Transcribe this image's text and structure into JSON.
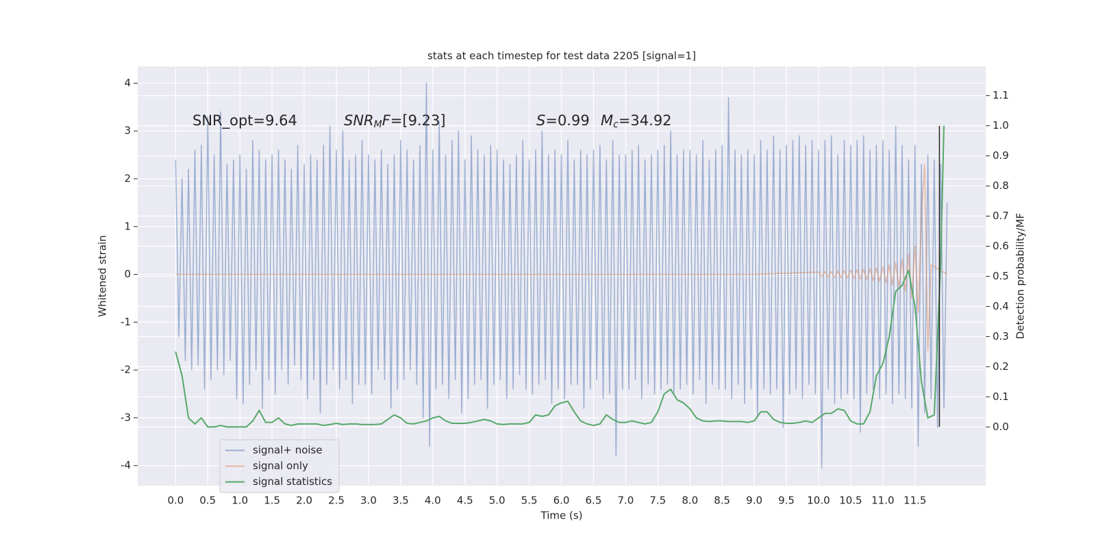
{
  "chart_data": {
    "type": "line",
    "title": "stats at each timestep for test data 2205 [signal=1]",
    "xlabel": "Time (s)",
    "ylabel": "Whitened strain",
    "y2label": "Detection probability/MF",
    "xlim": [
      -0.59,
      12.6
    ],
    "ylim": [
      -4.42,
      4.35
    ],
    "y2lim": [
      -0.195,
      1.197
    ],
    "xticks": [
      {
        "value": 0,
        "label": "0.0"
      },
      0.5,
      {
        "value": 1,
        "label": "1.0"
      },
      1.5,
      {
        "value": 2,
        "label": "2.0"
      },
      2.5,
      {
        "value": 3,
        "label": "3.0"
      },
      3.5,
      {
        "value": 4,
        "label": "4.0"
      },
      4.5,
      {
        "value": 5,
        "label": "5.0"
      },
      5.5,
      {
        "value": 6,
        "label": "6.0"
      },
      6.5,
      {
        "value": 7,
        "label": "7.0"
      },
      7.5,
      {
        "value": 8,
        "label": "8.0"
      },
      8.5,
      {
        "value": 9,
        "label": "9.0"
      },
      9.5,
      {
        "value": 10,
        "label": "10.0"
      },
      10.5,
      {
        "value": 11,
        "label": "11.0"
      },
      11.5
    ],
    "yticks": [
      -4,
      -3,
      -2,
      -1,
      0,
      1,
      2,
      3,
      4
    ],
    "y2ticks": [
      {
        "value": 0,
        "label": "0.0"
      },
      0.1,
      0.2,
      0.3,
      0.4,
      0.5,
      0.6,
      0.7,
      0.8,
      0.9,
      {
        "value": 1,
        "label": "1.0"
      },
      1.1
    ],
    "grid": true,
    "background": "#eaeaf2",
    "legend": "lower left",
    "annotations": [
      {
        "parts": [
          {
            "text": "SNR_opt=9.64"
          }
        ]
      },
      {
        "parts": [
          {
            "text": "SNR",
            "italic": true
          },
          {
            "text": "M",
            "italic": true,
            "sub": true
          },
          {
            "text": "F",
            "italic": true
          },
          {
            "text": "=[9.23]"
          }
        ]
      },
      {
        "parts": [
          {
            "text": "S",
            "italic": true
          },
          {
            "text": "=0.99"
          }
        ]
      },
      {
        "parts": [
          {
            "text": "M",
            "italic": true
          },
          {
            "text": "c",
            "italic": true,
            "sub": true
          },
          {
            "text": "=34.92"
          }
        ]
      }
    ],
    "vline": {
      "x": 11.88,
      "y2range": [
        0,
        1
      ],
      "color": "#222222"
    },
    "series": [
      {
        "name": "signal+ noise",
        "color": "#4c72b0",
        "alpha": 0.5,
        "x": [
          0,
          0.05,
          0.1,
          0.15,
          0.2,
          0.25,
          0.3,
          0.35,
          0.4,
          0.45,
          0.5,
          0.55,
          0.6,
          0.65,
          0.7,
          0.75,
          0.8,
          0.85,
          0.9,
          0.95,
          1,
          1.05,
          1.1,
          1.15,
          1.2,
          1.25,
          1.3,
          1.35,
          1.4,
          1.45,
          1.5,
          1.55,
          1.6,
          1.65,
          1.7,
          1.75,
          1.8,
          1.85,
          1.9,
          1.95,
          2,
          2.05,
          2.1,
          2.15,
          2.2,
          2.25,
          2.3,
          2.35,
          2.4,
          2.45,
          2.5,
          2.55,
          2.6,
          2.65,
          2.7,
          2.75,
          2.8,
          2.85,
          2.9,
          2.95,
          3,
          3.05,
          3.1,
          3.15,
          3.2,
          3.25,
          3.3,
          3.35,
          3.4,
          3.45,
          3.5,
          3.55,
          3.6,
          3.65,
          3.7,
          3.75,
          3.8,
          3.85,
          3.9,
          3.95,
          4,
          4.05,
          4.1,
          4.15,
          4.2,
          4.25,
          4.3,
          4.35,
          4.4,
          4.45,
          4.5,
          4.55,
          4.6,
          4.65,
          4.7,
          4.75,
          4.8,
          4.85,
          4.9,
          4.95,
          5,
          5.05,
          5.1,
          5.15,
          5.2,
          5.25,
          5.3,
          5.35,
          5.4,
          5.45,
          5.5,
          5.55,
          5.6,
          5.65,
          5.7,
          5.75,
          5.8,
          5.85,
          5.9,
          5.95,
          6,
          6.05,
          6.1,
          6.15,
          6.2,
          6.25,
          6.3,
          6.35,
          6.4,
          6.45,
          6.5,
          6.55,
          6.6,
          6.65,
          6.7,
          6.75,
          6.8,
          6.85,
          6.9,
          6.95,
          7,
          7.05,
          7.1,
          7.15,
          7.2,
          7.25,
          7.3,
          7.35,
          7.4,
          7.45,
          7.5,
          7.55,
          7.6,
          7.65,
          7.7,
          7.75,
          7.8,
          7.85,
          7.9,
          7.95,
          8,
          8.05,
          8.1,
          8.15,
          8.2,
          8.25,
          8.3,
          8.35,
          8.4,
          8.45,
          8.5,
          8.55,
          8.6,
          8.65,
          8.7,
          8.75,
          8.8,
          8.85,
          8.9,
          8.95,
          9,
          9.05,
          9.1,
          9.15,
          9.2,
          9.25,
          9.3,
          9.35,
          9.4,
          9.45,
          9.5,
          9.55,
          9.6,
          9.65,
          9.7,
          9.75,
          9.8,
          9.85,
          9.9,
          9.95,
          10,
          10.05,
          10.1,
          10.15,
          10.2,
          10.25,
          10.3,
          10.35,
          10.4,
          10.45,
          10.5,
          10.55,
          10.6,
          10.65,
          10.7,
          10.75,
          10.8,
          10.85,
          10.9,
          10.95,
          11,
          11.05,
          11.1,
          11.15,
          11.2,
          11.25,
          11.3,
          11.35,
          11.4,
          11.45,
          11.5,
          11.55,
          11.6,
          11.65,
          11.7,
          11.75,
          11.8,
          11.85,
          11.9,
          11.95,
          12
        ],
        "values": [
          2.4,
          -1.3,
          2.0,
          -1.8,
          2.2,
          -2.0,
          2.6,
          -1.9,
          2.7,
          -2.4,
          3.3,
          -2.2,
          2.5,
          -2.0,
          3.4,
          -2.1,
          2.3,
          -1.8,
          2.4,
          -2.6,
          2.5,
          -2.7,
          2.2,
          -2.3,
          2.8,
          -2.0,
          2.6,
          -2.8,
          2.4,
          -2.2,
          2.5,
          -2.5,
          2.6,
          -2.0,
          2.4,
          -2.3,
          2.2,
          -1.9,
          2.7,
          -2.2,
          2.3,
          -2.6,
          2.5,
          -2.2,
          2.4,
          -2.9,
          2.7,
          -2.3,
          3.1,
          -2.0,
          2.6,
          -2.4,
          3.0,
          -2.2,
          2.4,
          -2.7,
          2.5,
          -2.3,
          2.8,
          -2.3,
          2.5,
          -2.5,
          2.4,
          -2.0,
          2.6,
          -2.2,
          2.3,
          -2.8,
          2.5,
          -2.4,
          2.8,
          -2.2,
          2.6,
          -2.0,
          2.4,
          -2.3,
          2.7,
          -3.0,
          4.0,
          -3.6,
          2.6,
          -2.4,
          3.2,
          -2.3,
          2.5,
          -2.6,
          2.8,
          -2.2,
          3.0,
          -2.9,
          2.4,
          -2.6,
          2.9,
          -2.3,
          2.6,
          -2.2,
          2.5,
          -2.8,
          2.7,
          -2.3,
          2.6,
          -2.2,
          2.4,
          -2.6,
          2.3,
          -2.4,
          2.5,
          -2.1,
          2.8,
          -2.4,
          2.4,
          -2.5,
          2.6,
          -2.3,
          3.0,
          -2.2,
          2.5,
          -2.7,
          2.6,
          -2.4,
          2.5,
          -2.6,
          2.8,
          -2.3,
          2.4,
          -2.3,
          2.6,
          -2.8,
          2.5,
          -2.4,
          2.6,
          -2.2,
          2.7,
          -2.6,
          2.4,
          -2.5,
          2.8,
          -3.8,
          2.5,
          -2.4,
          2.5,
          -2.4,
          2.6,
          -2.2,
          2.7,
          -2.6,
          2.4,
          -2.3,
          2.5,
          -2.5,
          2.6,
          -2.4,
          2.7,
          -2.3,
          3.0,
          -2.5,
          2.5,
          -2.4,
          2.6,
          -2.3,
          2.6,
          -2.5,
          2.5,
          -2.2,
          2.8,
          -2.7,
          2.4,
          -2.3,
          2.6,
          -2.4,
          2.7,
          -2.4,
          3.7,
          -2.6,
          2.6,
          -2.3,
          2.5,
          -2.7,
          2.6,
          -2.4,
          2.5,
          -3.0,
          2.8,
          -2.4,
          2.6,
          -2.5,
          2.9,
          -2.4,
          2.6,
          -3.2,
          2.7,
          -2.5,
          2.8,
          -2.4,
          2.9,
          -2.6,
          2.7,
          -2.3,
          2.8,
          -2.5,
          2.6,
          -4.05,
          2.8,
          -2.4,
          2.9,
          -2.7,
          2.5,
          -2.6,
          2.8,
          -2.5,
          2.7,
          -2.6,
          2.8,
          -3.3,
          2.9,
          -2.5,
          2.6,
          -2.4,
          2.7,
          -2.6,
          2.8,
          -2.5,
          2.6,
          -2.7,
          3.1,
          -2.5,
          2.7,
          -2.6,
          2.4,
          -2.8,
          2.7,
          -3.6,
          2.3,
          -2.9,
          2.5,
          -2.6,
          2.4,
          -3.2,
          2.3,
          -2.8,
          1.5
        ]
      },
      {
        "name": "signal only",
        "color": "#dd8452",
        "alpha": 0.5,
        "x": [
          0,
          9,
          10,
          10.05,
          10.1,
          10.15,
          10.2,
          10.25,
          10.3,
          10.35,
          10.4,
          10.45,
          10.5,
          10.55,
          10.6,
          10.65,
          10.7,
          10.75,
          10.8,
          10.85,
          10.9,
          10.95,
          11,
          11.05,
          11.1,
          11.15,
          11.2,
          11.25,
          11.3,
          11.35,
          11.4,
          11.45,
          11.5,
          11.55,
          11.6,
          11.65,
          11.7,
          11.75,
          12
        ],
        "values": [
          0,
          0,
          0.05,
          -0.05,
          0.06,
          -0.06,
          0.06,
          -0.07,
          0.07,
          -0.07,
          0.08,
          -0.08,
          0.09,
          -0.09,
          0.1,
          -0.1,
          0.11,
          -0.11,
          0.12,
          -0.13,
          0.14,
          -0.15,
          0.16,
          -0.18,
          0.2,
          -0.22,
          0.25,
          -0.28,
          0.32,
          -0.36,
          0.42,
          -0.5,
          0.6,
          -0.8,
          1.2,
          2.3,
          -1.6,
          0.2,
          0
        ]
      },
      {
        "name": "signal statistics",
        "color": "#55a868",
        "axis": "y2",
        "x": [
          0,
          0.1,
          0.2,
          0.3,
          0.4,
          0.5,
          0.6,
          0.7,
          0.8,
          0.9,
          1,
          1.1,
          1.2,
          1.3,
          1.4,
          1.5,
          1.6,
          1.7,
          1.8,
          1.9,
          2,
          2.1,
          2.2,
          2.3,
          2.4,
          2.5,
          2.6,
          2.7,
          2.8,
          2.9,
          3,
          3.1,
          3.2,
          3.3,
          3.4,
          3.5,
          3.6,
          3.7,
          3.8,
          3.9,
          4,
          4.1,
          4.2,
          4.3,
          4.4,
          4.5,
          4.6,
          4.7,
          4.8,
          4.9,
          5,
          5.1,
          5.2,
          5.3,
          5.4,
          5.5,
          5.6,
          5.7,
          5.8,
          5.9,
          6,
          6.1,
          6.2,
          6.3,
          6.4,
          6.5,
          6.6,
          6.7,
          6.8,
          6.9,
          7,
          7.1,
          7.2,
          7.3,
          7.4,
          7.5,
          7.6,
          7.7,
          7.8,
          7.9,
          8,
          8.1,
          8.2,
          8.3,
          8.4,
          8.5,
          8.6,
          8.7,
          8.8,
          8.9,
          9,
          9.1,
          9.2,
          9.3,
          9.4,
          9.5,
          9.6,
          9.7,
          9.8,
          9.9,
          10,
          10.1,
          10.2,
          10.3,
          10.4,
          10.5,
          10.6,
          10.7,
          10.8,
          10.9,
          11,
          11.1,
          11.2,
          11.3,
          11.4,
          11.5,
          11.6,
          11.7,
          11.8,
          11.9,
          11.95
        ],
        "values": [
          0.25,
          0.17,
          0.03,
          0.01,
          0.03,
          0.0,
          0.0,
          0.005,
          0.0,
          0.0,
          0.0,
          0.0,
          0.02,
          0.055,
          0.015,
          0.015,
          0.03,
          0.01,
          0.005,
          0.01,
          0.01,
          0.01,
          0.01,
          0.005,
          0.008,
          0.012,
          0.008,
          0.01,
          0.01,
          0.008,
          0.008,
          0.008,
          0.01,
          0.025,
          0.04,
          0.03,
          0.012,
          0.01,
          0.015,
          0.02,
          0.03,
          0.035,
          0.02,
          0.012,
          0.012,
          0.012,
          0.015,
          0.02,
          0.025,
          0.02,
          0.01,
          0.008,
          0.01,
          0.01,
          0.01,
          0.015,
          0.04,
          0.035,
          0.04,
          0.07,
          0.08,
          0.085,
          0.05,
          0.02,
          0.01,
          0.005,
          0.01,
          0.04,
          0.025,
          0.015,
          0.015,
          0.02,
          0.015,
          0.01,
          0.015,
          0.05,
          0.11,
          0.125,
          0.09,
          0.08,
          0.06,
          0.03,
          0.02,
          0.018,
          0.02,
          0.02,
          0.018,
          0.018,
          0.018,
          0.015,
          0.02,
          0.05,
          0.05,
          0.025,
          0.015,
          0.012,
          0.012,
          0.015,
          0.02,
          0.015,
          0.03,
          0.045,
          0.045,
          0.06,
          0.055,
          0.02,
          0.01,
          0.01,
          0.05,
          0.17,
          0.21,
          0.3,
          0.45,
          0.47,
          0.52,
          0.4,
          0.15,
          0.03,
          0.04,
          0.55,
          1.0
        ]
      }
    ]
  }
}
